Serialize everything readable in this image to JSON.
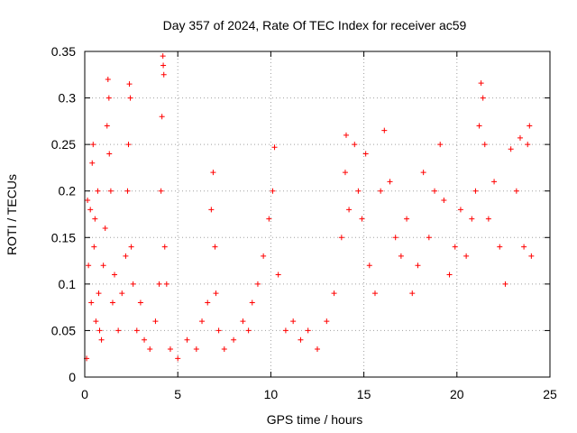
{
  "chart_data": {
    "type": "scatter",
    "title": "Day 357 of 2024, Rate Of TEC Index for receiver ac59",
    "xlabel": "GPS time / hours",
    "ylabel": "ROTI / TECUs",
    "xlim": [
      0,
      25
    ],
    "ylim": [
      0,
      0.35
    ],
    "xticks": [
      "0",
      "5",
      "10",
      "15",
      "20",
      "25"
    ],
    "yticks": [
      "0",
      "0.05",
      "0.1",
      "0.15",
      "0.2",
      "0.25",
      "0.3",
      "0.35"
    ],
    "grid": true,
    "marker": "+",
    "color": "#ff0000",
    "series": [
      {
        "points": [
          [
            0.1,
            0.02
          ],
          [
            0.15,
            0.19
          ],
          [
            0.2,
            0.12
          ],
          [
            0.3,
            0.18
          ],
          [
            0.35,
            0.08
          ],
          [
            0.4,
            0.23
          ],
          [
            0.45,
            0.25
          ],
          [
            0.5,
            0.14
          ],
          [
            0.55,
            0.17
          ],
          [
            0.6,
            0.06
          ],
          [
            0.7,
            0.2
          ],
          [
            0.75,
            0.09
          ],
          [
            0.8,
            0.05
          ],
          [
            0.9,
            0.04
          ],
          [
            1.0,
            0.12
          ],
          [
            1.1,
            0.16
          ],
          [
            1.2,
            0.27
          ],
          [
            1.25,
            0.32
          ],
          [
            1.3,
            0.3
          ],
          [
            1.32,
            0.24
          ],
          [
            1.4,
            0.2
          ],
          [
            1.5,
            0.08
          ],
          [
            1.6,
            0.11
          ],
          [
            1.8,
            0.05
          ],
          [
            2.0,
            0.09
          ],
          [
            2.2,
            0.13
          ],
          [
            2.3,
            0.2
          ],
          [
            2.35,
            0.25
          ],
          [
            2.4,
            0.315
          ],
          [
            2.45,
            0.3
          ],
          [
            2.5,
            0.14
          ],
          [
            2.6,
            0.1
          ],
          [
            2.8,
            0.05
          ],
          [
            3.0,
            0.08
          ],
          [
            3.2,
            0.04
          ],
          [
            3.5,
            0.03
          ],
          [
            3.8,
            0.06
          ],
          [
            4.0,
            0.1
          ],
          [
            4.1,
            0.2
          ],
          [
            4.15,
            0.28
          ],
          [
            4.2,
            0.345
          ],
          [
            4.22,
            0.335
          ],
          [
            4.25,
            0.325
          ],
          [
            4.3,
            0.14
          ],
          [
            4.4,
            0.1
          ],
          [
            4.6,
            0.03
          ],
          [
            5.0,
            0.02
          ],
          [
            5.5,
            0.04
          ],
          [
            6.0,
            0.03
          ],
          [
            6.3,
            0.06
          ],
          [
            6.6,
            0.08
          ],
          [
            6.8,
            0.18
          ],
          [
            6.9,
            0.22
          ],
          [
            7.0,
            0.14
          ],
          [
            7.05,
            0.09
          ],
          [
            7.2,
            0.05
          ],
          [
            7.5,
            0.03
          ],
          [
            8.0,
            0.04
          ],
          [
            8.5,
            0.06
          ],
          [
            8.8,
            0.05
          ],
          [
            9.0,
            0.08
          ],
          [
            9.3,
            0.1
          ],
          [
            9.6,
            0.13
          ],
          [
            9.9,
            0.17
          ],
          [
            10.1,
            0.2
          ],
          [
            10.2,
            0.247
          ],
          [
            10.4,
            0.11
          ],
          [
            10.8,
            0.05
          ],
          [
            11.2,
            0.06
          ],
          [
            11.6,
            0.04
          ],
          [
            12.0,
            0.05
          ],
          [
            12.5,
            0.03
          ],
          [
            13.0,
            0.06
          ],
          [
            13.4,
            0.09
          ],
          [
            13.8,
            0.15
          ],
          [
            14.0,
            0.22
          ],
          [
            14.05,
            0.26
          ],
          [
            14.2,
            0.18
          ],
          [
            14.5,
            0.25
          ],
          [
            14.7,
            0.2
          ],
          [
            14.9,
            0.17
          ],
          [
            15.1,
            0.24
          ],
          [
            15.3,
            0.12
          ],
          [
            15.6,
            0.09
          ],
          [
            15.9,
            0.2
          ],
          [
            16.1,
            0.265
          ],
          [
            16.4,
            0.21
          ],
          [
            16.7,
            0.15
          ],
          [
            17.0,
            0.13
          ],
          [
            17.3,
            0.17
          ],
          [
            17.6,
            0.09
          ],
          [
            17.9,
            0.12
          ],
          [
            18.2,
            0.22
          ],
          [
            18.5,
            0.15
          ],
          [
            18.8,
            0.2
          ],
          [
            19.1,
            0.25
          ],
          [
            19.3,
            0.19
          ],
          [
            19.6,
            0.11
          ],
          [
            19.9,
            0.14
          ],
          [
            20.2,
            0.18
          ],
          [
            20.5,
            0.13
          ],
          [
            20.8,
            0.17
          ],
          [
            21.0,
            0.2
          ],
          [
            21.2,
            0.27
          ],
          [
            21.3,
            0.316
          ],
          [
            21.4,
            0.3
          ],
          [
            21.5,
            0.25
          ],
          [
            21.7,
            0.17
          ],
          [
            22.0,
            0.21
          ],
          [
            22.3,
            0.14
          ],
          [
            22.6,
            0.1
          ],
          [
            22.9,
            0.245
          ],
          [
            23.2,
            0.2
          ],
          [
            23.4,
            0.257
          ],
          [
            23.6,
            0.14
          ],
          [
            23.8,
            0.25
          ],
          [
            23.9,
            0.27
          ],
          [
            24.0,
            0.13
          ]
        ]
      }
    ]
  }
}
